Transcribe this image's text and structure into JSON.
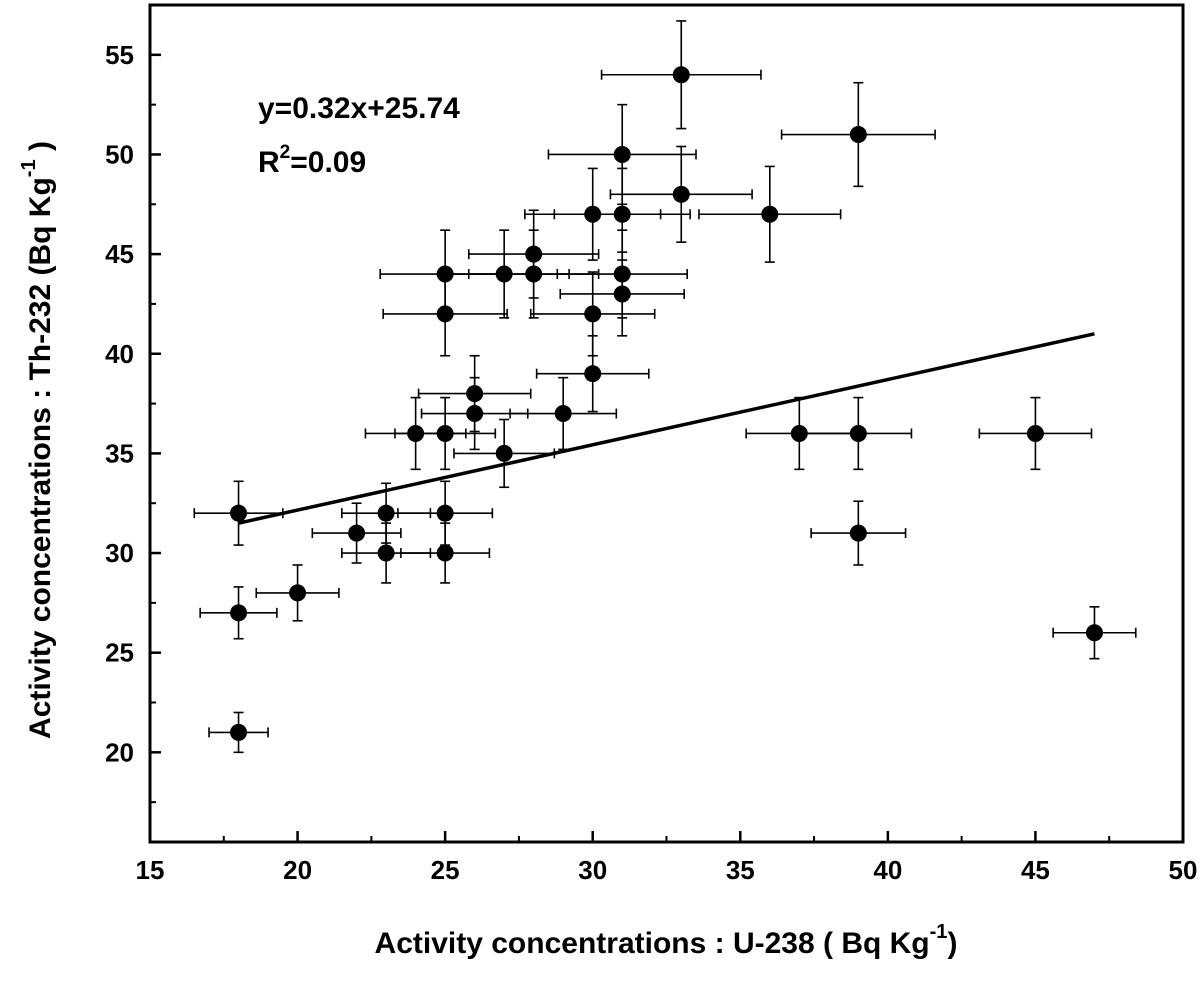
{
  "chart_data": {
    "type": "scatter",
    "xlabel": "Activity concentrations : U-238 ( Bq Kg",
    "xlabel_sup": "-1",
    "xlabel_end": ")",
    "ylabel": "Activity concentrations : Th-232 (Bq Kg",
    "ylabel_sup": "-1",
    "ylabel_end": " )",
    "xlim": [
      15,
      50
    ],
    "ylim": [
      15.5,
      57.5
    ],
    "xticks": [
      15,
      20,
      25,
      30,
      35,
      40,
      45,
      50
    ],
    "yticks": [
      20,
      25,
      30,
      35,
      40,
      45,
      50,
      55
    ],
    "grid": false,
    "annotation": {
      "equation": "y=0.32x+25.74",
      "r2_prefix": "R",
      "r2_sup": "2",
      "r2_value": "=0.09"
    },
    "fit_line": {
      "x": [
        18,
        47
      ],
      "y": [
        31.5,
        41.0
      ]
    },
    "marker_color": "#000000",
    "points": [
      {
        "x": 18,
        "y": 32,
        "xerr": 1.5,
        "yerr": 1.6
      },
      {
        "x": 18,
        "y": 27,
        "xerr": 1.3,
        "yerr": 1.3
      },
      {
        "x": 18,
        "y": 21,
        "xerr": 1.0,
        "yerr": 1.0
      },
      {
        "x": 20,
        "y": 28,
        "xerr": 1.4,
        "yerr": 1.4
      },
      {
        "x": 22,
        "y": 31,
        "xerr": 1.5,
        "yerr": 1.5
      },
      {
        "x": 23,
        "y": 32,
        "xerr": 1.5,
        "yerr": 1.5
      },
      {
        "x": 23,
        "y": 30,
        "xerr": 1.5,
        "yerr": 1.5
      },
      {
        "x": 24,
        "y": 36,
        "xerr": 1.7,
        "yerr": 1.8
      },
      {
        "x": 25,
        "y": 44,
        "xerr": 2.2,
        "yerr": 2.2
      },
      {
        "x": 25,
        "y": 42,
        "xerr": 2.1,
        "yerr": 2.1
      },
      {
        "x": 25,
        "y": 36,
        "xerr": 1.7,
        "yerr": 1.8
      },
      {
        "x": 25,
        "y": 32,
        "xerr": 1.6,
        "yerr": 1.6
      },
      {
        "x": 25,
        "y": 30,
        "xerr": 1.5,
        "yerr": 1.5
      },
      {
        "x": 26,
        "y": 38,
        "xerr": 1.9,
        "yerr": 1.9
      },
      {
        "x": 26,
        "y": 37,
        "xerr": 1.8,
        "yerr": 1.8
      },
      {
        "x": 27,
        "y": 44,
        "xerr": 2.2,
        "yerr": 2.2
      },
      {
        "x": 27,
        "y": 35,
        "xerr": 1.7,
        "yerr": 1.7
      },
      {
        "x": 28,
        "y": 45,
        "xerr": 2.2,
        "yerr": 2.2
      },
      {
        "x": 28,
        "y": 44,
        "xerr": 2.2,
        "yerr": 2.2
      },
      {
        "x": 29,
        "y": 37,
        "xerr": 1.8,
        "yerr": 1.8
      },
      {
        "x": 30,
        "y": 47,
        "xerr": 2.3,
        "yerr": 2.3
      },
      {
        "x": 30,
        "y": 42,
        "xerr": 2.1,
        "yerr": 2.1
      },
      {
        "x": 30,
        "y": 39,
        "xerr": 1.9,
        "yerr": 1.9
      },
      {
        "x": 31,
        "y": 50,
        "xerr": 2.5,
        "yerr": 2.5
      },
      {
        "x": 31,
        "y": 47,
        "xerr": 2.3,
        "yerr": 2.3
      },
      {
        "x": 31,
        "y": 44,
        "xerr": 2.2,
        "yerr": 2.2
      },
      {
        "x": 31,
        "y": 43,
        "xerr": 2.1,
        "yerr": 2.1
      },
      {
        "x": 33,
        "y": 54,
        "xerr": 2.7,
        "yerr": 2.7
      },
      {
        "x": 33,
        "y": 48,
        "xerr": 2.4,
        "yerr": 2.4
      },
      {
        "x": 36,
        "y": 47,
        "xerr": 2.4,
        "yerr": 2.4
      },
      {
        "x": 37,
        "y": 36,
        "xerr": 1.8,
        "yerr": 1.8
      },
      {
        "x": 39,
        "y": 51,
        "xerr": 2.6,
        "yerr": 2.6
      },
      {
        "x": 39,
        "y": 36,
        "xerr": 1.8,
        "yerr": 1.8
      },
      {
        "x": 39,
        "y": 31,
        "xerr": 1.6,
        "yerr": 1.6
      },
      {
        "x": 45,
        "y": 36,
        "xerr": 1.9,
        "yerr": 1.8
      },
      {
        "x": 47,
        "y": 26,
        "xerr": 1.4,
        "yerr": 1.3
      }
    ]
  }
}
